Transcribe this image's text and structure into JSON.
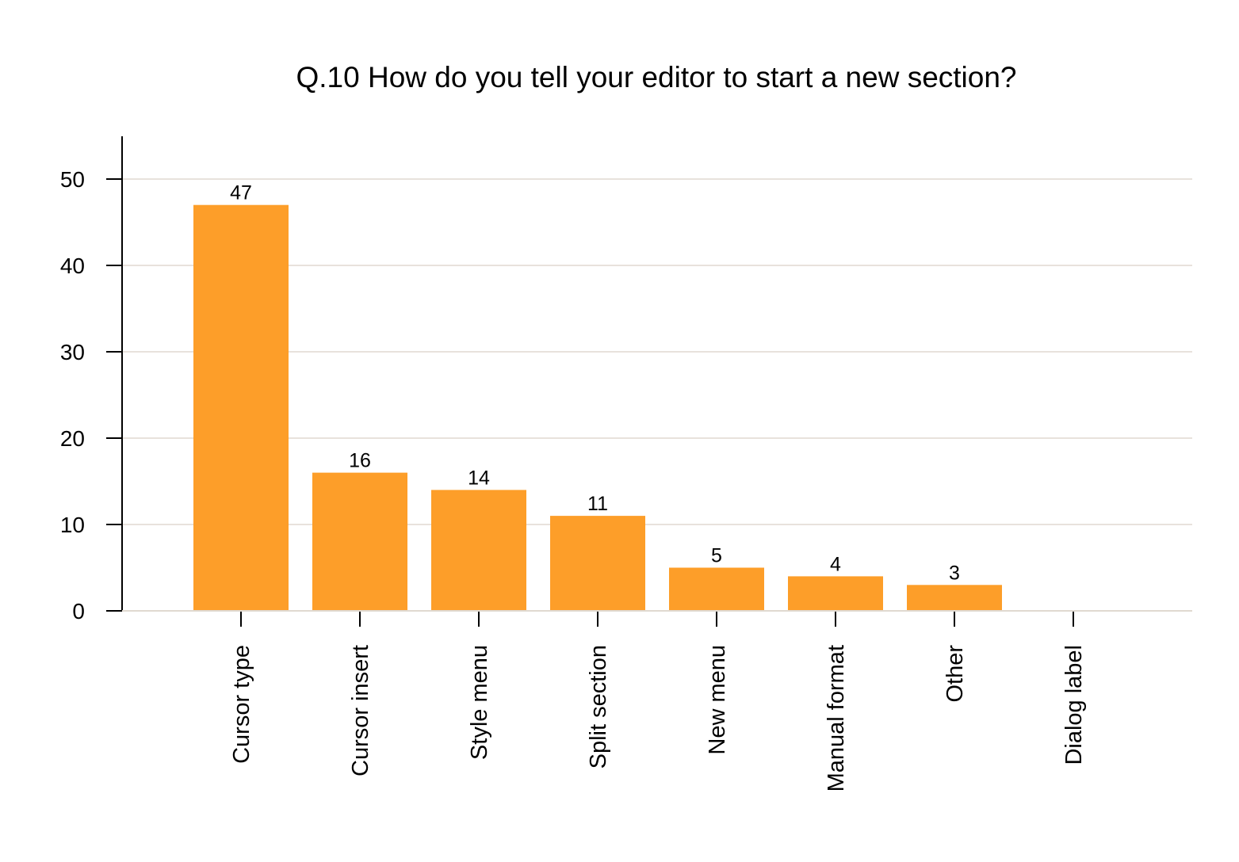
{
  "chart_data": {
    "type": "bar",
    "title": "Q.10 How do you tell your editor to start a new section?",
    "xlabel": "",
    "ylabel": "",
    "categories": [
      "Cursor type",
      "Cursor insert",
      "Style menu",
      "Split section",
      "New menu",
      "Manual format",
      "Other",
      "Dialog label"
    ],
    "values": [
      47,
      16,
      14,
      11,
      5,
      4,
      3,
      0
    ],
    "data_labels": [
      "47",
      "16",
      "14",
      "11",
      "5",
      "4",
      "3",
      ""
    ],
    "ylim": [
      0,
      55
    ],
    "yticks": [
      0,
      10,
      20,
      30,
      40,
      50
    ],
    "ytick_labels": [
      "0",
      "10",
      "20",
      "30",
      "40",
      "50"
    ],
    "grid": "horizontal",
    "legend": "none",
    "colors": {
      "bar": "#fd9e29",
      "grid": "#e0d9d0",
      "axis": "#000000"
    }
  }
}
